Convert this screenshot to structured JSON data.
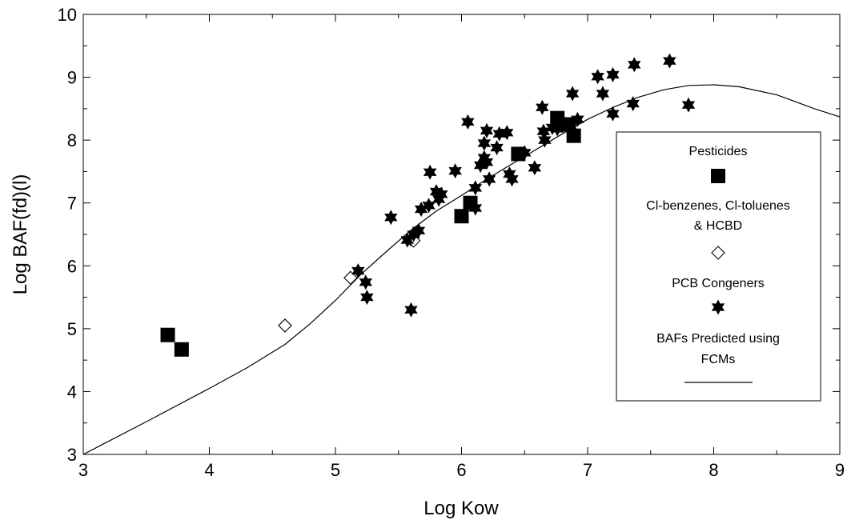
{
  "chart_data": {
    "type": "scatter",
    "xlabel": "Log Kow",
    "ylabel": "Log BAF(fd)(l)",
    "xlim": [
      3,
      9
    ],
    "ylim": [
      3,
      10
    ],
    "x_ticks": [
      "3",
      "4",
      "5",
      "6",
      "7",
      "8",
      "9"
    ],
    "y_ticks": [
      "3",
      "4",
      "5",
      "6",
      "7",
      "8",
      "9",
      "10"
    ],
    "grid": false,
    "legend": {
      "placement": "right",
      "entries": [
        {
          "label": "Pesticides",
          "marker": "square"
        },
        {
          "label_lines": [
            "Cl-benzenes, Cl-toluenes",
            "& HCBD"
          ],
          "marker": "diamond"
        },
        {
          "label": "PCB Congeners",
          "marker": "star"
        },
        {
          "label_lines": [
            "BAFs Predicted using",
            "FCMs"
          ],
          "marker": "line"
        }
      ]
    },
    "series": [
      {
        "name": "Pesticides",
        "marker": "square",
        "points": [
          [
            3.67,
            4.9
          ],
          [
            3.78,
            4.67
          ],
          [
            6.0,
            6.79
          ],
          [
            6.07,
            7.0
          ],
          [
            6.45,
            7.78
          ],
          [
            6.76,
            8.35
          ],
          [
            6.89,
            8.07
          ],
          [
            6.85,
            8.25
          ]
        ]
      },
      {
        "name": "Cl-benzenes, Cl-toluenes & HCBD",
        "marker": "diamond",
        "points": [
          [
            4.6,
            5.05
          ],
          [
            5.12,
            5.81
          ],
          [
            5.6,
            6.42
          ],
          [
            5.62,
            6.4
          ]
        ]
      },
      {
        "name": "PCB Congeners",
        "marker": "star",
        "points": [
          [
            5.18,
            5.92
          ],
          [
            5.24,
            5.74
          ],
          [
            5.25,
            5.5
          ],
          [
            5.44,
            6.77
          ],
          [
            5.57,
            6.41
          ],
          [
            5.6,
            5.3
          ],
          [
            5.62,
            6.5
          ],
          [
            5.66,
            6.56
          ],
          [
            5.68,
            6.9
          ],
          [
            5.74,
            6.96
          ],
          [
            5.75,
            7.49
          ],
          [
            5.8,
            7.18
          ],
          [
            5.82,
            7.06
          ],
          [
            5.84,
            7.14
          ],
          [
            5.95,
            7.51
          ],
          [
            6.05,
            8.29
          ],
          [
            6.11,
            6.92
          ],
          [
            6.11,
            7.24
          ],
          [
            6.15,
            7.6
          ],
          [
            6.18,
            7.72
          ],
          [
            6.18,
            7.95
          ],
          [
            6.2,
            8.15
          ],
          [
            6.2,
            7.65
          ],
          [
            6.22,
            7.38
          ],
          [
            6.28,
            7.88
          ],
          [
            6.3,
            8.1
          ],
          [
            6.36,
            8.12
          ],
          [
            6.38,
            7.46
          ],
          [
            6.4,
            7.38
          ],
          [
            6.5,
            7.8
          ],
          [
            6.58,
            7.56
          ],
          [
            6.64,
            8.52
          ],
          [
            6.65,
            8.14
          ],
          [
            6.66,
            8.0
          ],
          [
            6.72,
            8.2
          ],
          [
            6.76,
            8.18
          ],
          [
            6.88,
            8.74
          ],
          [
            6.92,
            8.33
          ],
          [
            7.08,
            9.01
          ],
          [
            7.12,
            8.74
          ],
          [
            7.2,
            9.04
          ],
          [
            7.2,
            8.42
          ],
          [
            7.36,
            8.58
          ],
          [
            7.37,
            9.2
          ],
          [
            7.65,
            9.26
          ],
          [
            7.8,
            8.56
          ]
        ]
      }
    ],
    "curve": {
      "name": "BAFs Predicted using FCMs",
      "points": [
        [
          3.0,
          3.0
        ],
        [
          3.5,
          3.52
        ],
        [
          4.0,
          4.05
        ],
        [
          4.3,
          4.38
        ],
        [
          4.6,
          4.75
        ],
        [
          4.8,
          5.08
        ],
        [
          5.0,
          5.45
        ],
        [
          5.2,
          5.86
        ],
        [
          5.4,
          6.22
        ],
        [
          5.6,
          6.57
        ],
        [
          5.8,
          6.87
        ],
        [
          6.0,
          7.12
        ],
        [
          6.2,
          7.38
        ],
        [
          6.4,
          7.62
        ],
        [
          6.6,
          7.86
        ],
        [
          6.8,
          8.1
        ],
        [
          7.0,
          8.33
        ],
        [
          7.2,
          8.52
        ],
        [
          7.4,
          8.68
        ],
        [
          7.6,
          8.8
        ],
        [
          7.8,
          8.87
        ],
        [
          8.0,
          8.88
        ],
        [
          8.2,
          8.85
        ],
        [
          8.5,
          8.72
        ],
        [
          8.8,
          8.5
        ],
        [
          9.0,
          8.37
        ]
      ]
    }
  }
}
